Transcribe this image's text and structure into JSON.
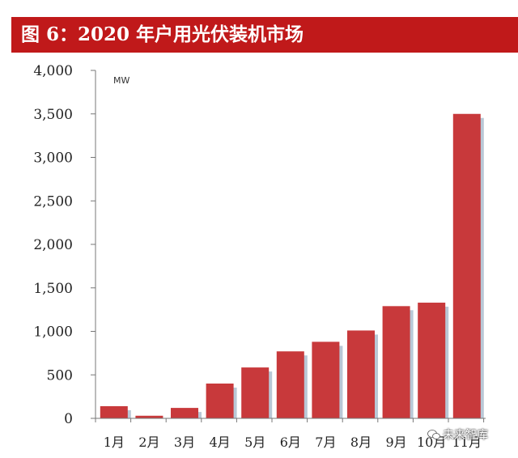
{
  "title": "图 6：2020 年户用光伏装机市场",
  "watermark": "未来智库",
  "chart_data": {
    "type": "bar",
    "unit": "MW",
    "categories": [
      "1月",
      "2月",
      "3月",
      "4月",
      "5月",
      "6月",
      "7月",
      "8月",
      "9月",
      "10月",
      "11月"
    ],
    "values": [
      140,
      30,
      120,
      400,
      585,
      770,
      880,
      1010,
      1290,
      1330,
      3500
    ],
    "y_ticks": [
      "4,000",
      "3,500",
      "3,000",
      "2,500",
      "2,000",
      "1,500",
      "1,000",
      "500",
      "0"
    ],
    "ylim": [
      0,
      4000
    ],
    "bar_color": "#c8393b",
    "shadow_color": "#b9c8d6",
    "grid": false
  }
}
